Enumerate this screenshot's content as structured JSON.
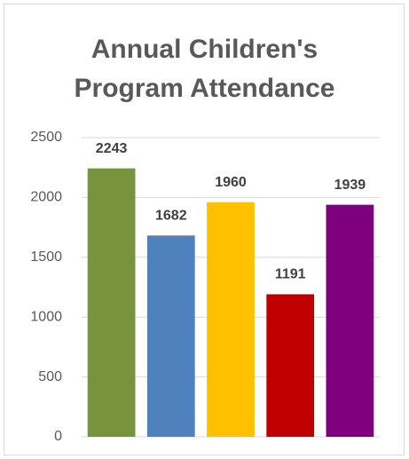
{
  "chart_data": {
    "type": "bar",
    "title": "Annual Children's Program Attendance",
    "categories": [
      null,
      null,
      null,
      null,
      null
    ],
    "values": [
      2243,
      1682,
      1960,
      1191,
      1939
    ],
    "colors": [
      "#77933c",
      "#4f81bd",
      "#ffc000",
      "#c00000",
      "#7f007f"
    ],
    "ylim": [
      0,
      2500
    ],
    "yticks": [
      0,
      500,
      1000,
      1500,
      2000,
      2500
    ],
    "grid": true
  }
}
